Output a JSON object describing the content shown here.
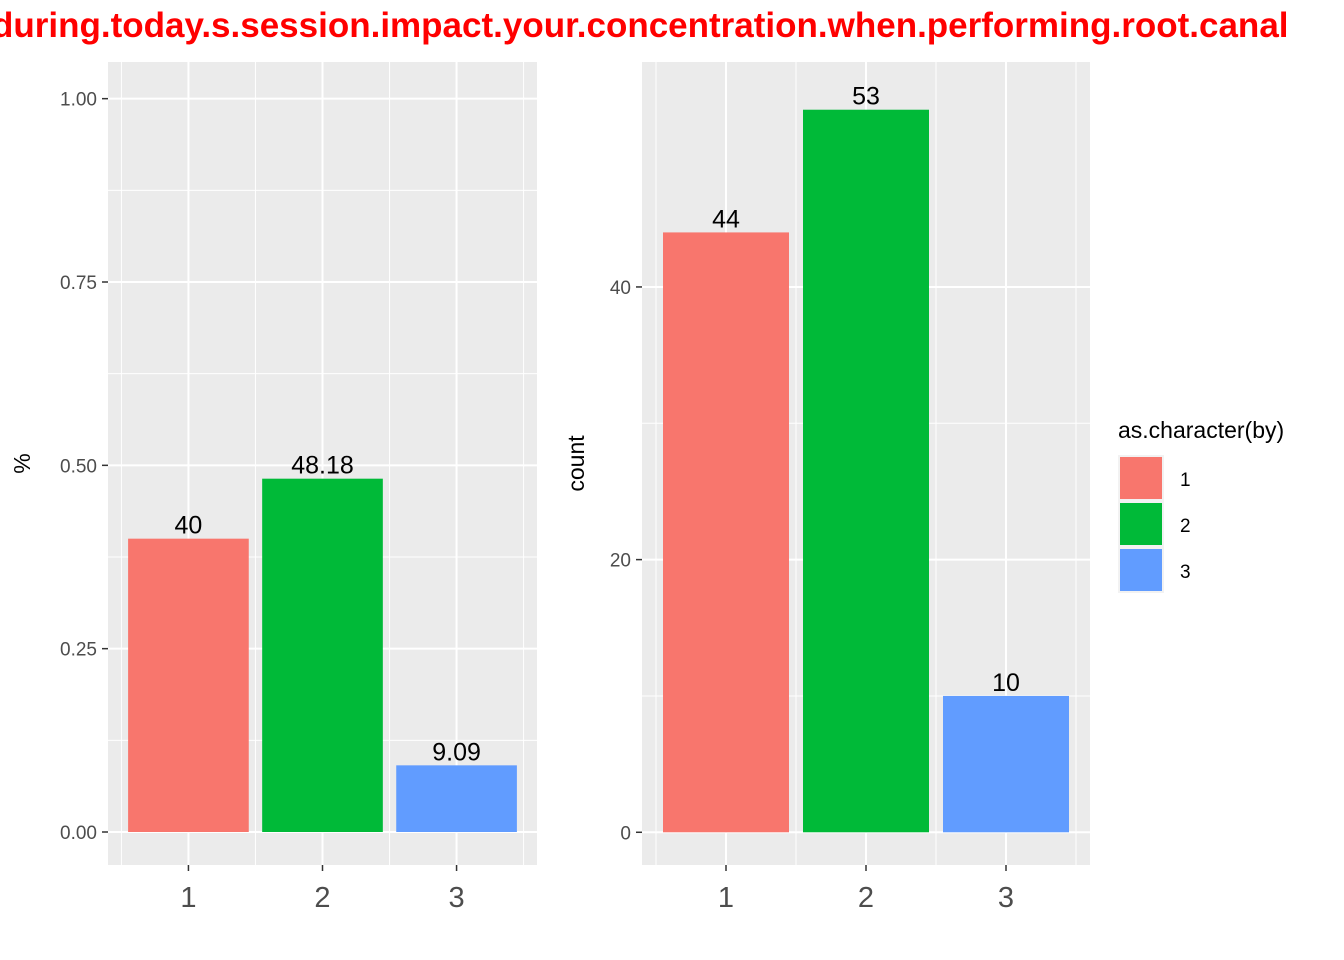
{
  "title": "during.today.s.session.impact.your.concentration.when.performing.root.canal",
  "colors": {
    "title": "#ff0000",
    "panel_bg": "#ebebeb",
    "grid": "#ffffff",
    "series": [
      "#f8766d",
      "#00ba38",
      "#619cff"
    ]
  },
  "chart_data": [
    {
      "type": "bar",
      "categories": [
        "1",
        "2",
        "3"
      ],
      "values": [
        0.4,
        0.4818,
        0.0909
      ],
      "labels": [
        "40",
        "48.18",
        "9.09"
      ],
      "ylabel": "%",
      "xlabel": "",
      "ylim": [
        -0.045,
        1.05
      ],
      "yticks": [
        0,
        0.25,
        0.5,
        0.75,
        1.0
      ],
      "ytick_labels": [
        "0.00",
        "0.25",
        "0.50",
        "0.75",
        "1.00"
      ],
      "grid": true
    },
    {
      "type": "bar",
      "categories": [
        "1",
        "2",
        "3"
      ],
      "values": [
        44,
        53,
        10
      ],
      "labels": [
        "44",
        "53",
        "10"
      ],
      "ylabel": "count",
      "xlabel": "",
      "ylim": [
        -2.4,
        56.5
      ],
      "yticks": [
        0,
        20,
        40
      ],
      "ytick_labels": [
        "0",
        "20",
        "40"
      ],
      "grid": true
    }
  ],
  "legend": {
    "title": "as.character(by)",
    "position": "right",
    "items": [
      "1",
      "2",
      "3"
    ]
  }
}
